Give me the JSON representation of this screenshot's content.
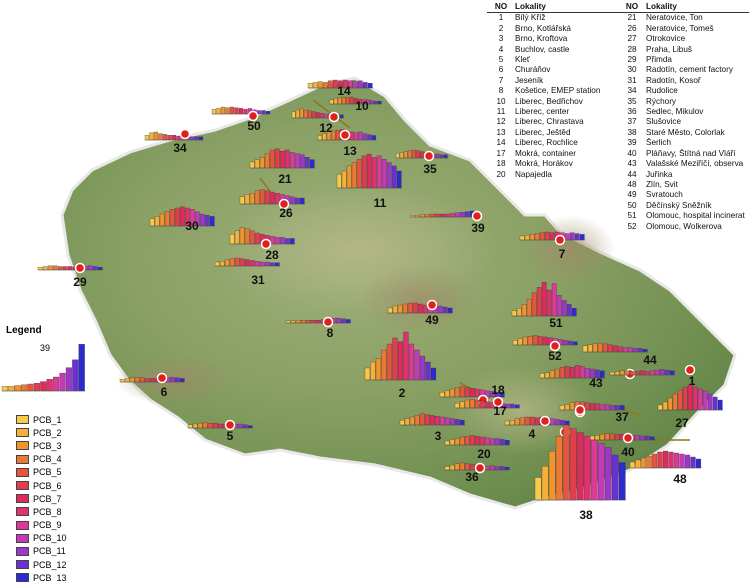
{
  "legend": {
    "title": "Legend",
    "sample_label": "39",
    "sample_values": [
      0.6,
      0.6,
      0.7,
      0.8,
      0.9,
      1.0,
      1.2,
      1.5,
      1.8,
      2.3,
      3.0,
      4.0,
      6.0
    ],
    "items": [
      {
        "label": "PCB_1",
        "color": "#f9c94a"
      },
      {
        "label": "PCB_2",
        "color": "#f5b03a"
      },
      {
        "label": "PCB_3",
        "color": "#f0952e"
      },
      {
        "label": "PCB_4",
        "color": "#ea7a33"
      },
      {
        "label": "PCB_5",
        "color": "#e6553f"
      },
      {
        "label": "PCB_6",
        "color": "#e23d4d"
      },
      {
        "label": "PCB_7",
        "color": "#de2b5c"
      },
      {
        "label": "PCB_8",
        "color": "#e0306e"
      },
      {
        "label": "PCB_9",
        "color": "#dc3a96"
      },
      {
        "label": "PCB_10",
        "color": "#c23ab8"
      },
      {
        "label": "PCB_11",
        "color": "#9c38c6"
      },
      {
        "label": "PCB_12",
        "color": "#6a32cc"
      },
      {
        "label": "PCB_13",
        "color": "#2c2ad0"
      }
    ]
  },
  "table": {
    "header_no": "NO",
    "header_name": "Lokality",
    "left": [
      {
        "no": "1",
        "name": "Bílý Kříž"
      },
      {
        "no": "2",
        "name": "Brno, Kotlářská"
      },
      {
        "no": "3",
        "name": "Brno, Kroftova"
      },
      {
        "no": "4",
        "name": "Buchlov, castle"
      },
      {
        "no": "5",
        "name": "Kleť"
      },
      {
        "no": "6",
        "name": "Churáňov"
      },
      {
        "no": "7",
        "name": "Jeseník"
      },
      {
        "no": "8",
        "name": "Košetice, EMEP station"
      },
      {
        "no": "10",
        "name": "Liberec, Bedřichov"
      },
      {
        "no": "11",
        "name": "Liberec, center"
      },
      {
        "no": "12",
        "name": "Liberec, Chrastava"
      },
      {
        "no": "13",
        "name": "Liberec, Ještěd"
      },
      {
        "no": "14",
        "name": "Liberec, Rochlice"
      },
      {
        "no": "17",
        "name": "Mokrá, container"
      },
      {
        "no": "18",
        "name": "Mokrá, Horákov"
      },
      {
        "no": "20",
        "name": "Napajedla"
      }
    ],
    "right": [
      {
        "no": "21",
        "name": "Neratovice, Ton"
      },
      {
        "no": "26",
        "name": "Neratovice, Tomeš"
      },
      {
        "no": "27",
        "name": "Otrokovice"
      },
      {
        "no": "28",
        "name": "Praha, Libuš"
      },
      {
        "no": "29",
        "name": "Přimda"
      },
      {
        "no": "30",
        "name": "Radotín, cement factory"
      },
      {
        "no": "31",
        "name": "Radotín, Kosoř"
      },
      {
        "no": "34",
        "name": "Rudolice"
      },
      {
        "no": "35",
        "name": "Rýchory"
      },
      {
        "no": "36",
        "name": "Sedlec, Mikulov"
      },
      {
        "no": "37",
        "name": "Slušovice"
      },
      {
        "no": "38",
        "name": "Staré Město, Colorlak"
      },
      {
        "no": "39",
        "name": "Šerlich"
      },
      {
        "no": "40",
        "name": "Pláňavy, Štítná nad Vláří"
      },
      {
        "no": "43",
        "name": "Valašské Meziříčí, observa"
      },
      {
        "no": "44",
        "name": "Juřinka"
      },
      {
        "no": "48",
        "name": "Zlín, Svit"
      },
      {
        "no": "49",
        "name": "Svratouch"
      },
      {
        "no": "50",
        "name": "Děčínský Sněžník"
      },
      {
        "no": "51",
        "name": "Olomouc, hospital incinerat"
      },
      {
        "no": "52",
        "name": "Olomouc,  Wolkerova"
      }
    ]
  },
  "sites": [
    {
      "label": "14",
      "values": [
        0.6,
        0.7,
        0.8,
        0.7,
        0.9,
        1.0,
        0.9,
        1.0,
        0.9,
        0.8,
        0.9,
        0.7,
        0.6
      ]
    },
    {
      "label": "10",
      "values": [
        0.6,
        0.8,
        0.9,
        1.0,
        0.9,
        1.0,
        0.8,
        0.7,
        0.6,
        0.6,
        0.5,
        0.4,
        0.4
      ]
    },
    {
      "label": "50",
      "values": [
        0.7,
        0.8,
        1.0,
        0.9,
        1.0,
        0.9,
        0.8,
        0.7,
        0.8,
        0.6,
        0.5,
        0.5,
        0.4
      ]
    },
    {
      "label": "12",
      "values": [
        0.8,
        1.0,
        1.2,
        1.0,
        0.9,
        0.8,
        0.7,
        0.6,
        0.5,
        0.5,
        0.4,
        0.4,
        0.4
      ]
    },
    {
      "label": "34",
      "values": [
        0.6,
        0.9,
        1.0,
        0.8,
        0.7,
        0.6,
        0.6,
        0.5,
        0.5,
        0.5,
        0.4,
        0.4,
        0.4
      ]
    },
    {
      "label": "13",
      "values": [
        0.5,
        0.7,
        0.9,
        1.0,
        1.1,
        1.2,
        1.0,
        0.9,
        0.8,
        0.9,
        0.7,
        0.6,
        0.5
      ]
    },
    {
      "label": "35",
      "values": [
        0.6,
        0.7,
        0.8,
        0.9,
        1.0,
        0.9,
        0.8,
        0.7,
        0.6,
        0.5,
        0.5,
        0.4,
        0.4
      ]
    },
    {
      "label": "21",
      "values": [
        0.5,
        0.7,
        0.9,
        1.2,
        1.5,
        1.6,
        1.4,
        1.5,
        1.3,
        1.2,
        1.1,
        0.9,
        0.7
      ]
    },
    {
      "label": "11",
      "values": [
        0.8,
        1.0,
        1.3,
        1.5,
        1.7,
        1.9,
        2.0,
        1.8,
        1.9,
        1.7,
        1.5,
        1.3,
        1.0
      ]
    },
    {
      "label": "26",
      "values": [
        0.6,
        0.8,
        0.9,
        1.1,
        1.2,
        1.1,
        1.0,
        0.9,
        0.8,
        0.7,
        0.6,
        0.5,
        0.5
      ]
    },
    {
      "label": "30",
      "values": [
        0.6,
        0.8,
        1.0,
        1.2,
        1.4,
        1.5,
        1.6,
        1.5,
        1.4,
        1.2,
        1.0,
        0.9,
        0.8
      ]
    },
    {
      "label": "39",
      "values": [
        0.3,
        0.3,
        0.4,
        0.4,
        0.5,
        0.5,
        0.5,
        0.5,
        0.6,
        0.7,
        0.8,
        0.9,
        1.0
      ]
    },
    {
      "label": "28",
      "values": [
        0.9,
        1.2,
        1.5,
        1.4,
        1.2,
        1.0,
        0.9,
        0.8,
        0.7,
        0.6,
        0.6,
        0.5,
        0.5
      ]
    },
    {
      "label": "7",
      "values": [
        0.5,
        0.6,
        0.7,
        0.8,
        0.9,
        1.0,
        0.9,
        1.0,
        0.9,
        0.8,
        0.9,
        0.8,
        0.7
      ]
    },
    {
      "label": "31",
      "values": [
        0.5,
        0.6,
        0.8,
        0.9,
        1.0,
        0.9,
        0.8,
        0.7,
        0.6,
        0.5,
        0.5,
        0.4,
        0.4
      ]
    },
    {
      "label": "29",
      "values": [
        0.4,
        0.5,
        0.6,
        0.6,
        0.5,
        0.5,
        0.5,
        0.4,
        0.4,
        0.5,
        0.6,
        0.5,
        0.4
      ]
    },
    {
      "label": "49",
      "values": [
        0.5,
        0.7,
        0.8,
        0.9,
        1.0,
        1.0,
        0.9,
        0.8,
        0.7,
        0.8,
        0.7,
        0.6,
        0.5
      ]
    },
    {
      "label": "51",
      "values": [
        0.4,
        0.6,
        0.9,
        1.3,
        1.8,
        2.2,
        2.6,
        2.0,
        2.5,
        1.6,
        1.2,
        0.9,
        0.6
      ]
    },
    {
      "label": "8",
      "values": [
        0.3,
        0.3,
        0.4,
        0.4,
        0.4,
        0.4,
        0.4,
        0.5,
        0.6,
        0.7,
        0.7,
        0.6,
        0.5
      ]
    },
    {
      "label": "2",
      "values": [
        1.0,
        1.5,
        1.8,
        2.5,
        3.0,
        3.5,
        3.2,
        4.0,
        3.0,
        2.5,
        2.0,
        1.5,
        1.0
      ]
    },
    {
      "label": "52",
      "values": [
        0.6,
        0.8,
        1.0,
        1.1,
        1.2,
        1.1,
        1.0,
        0.9,
        0.8,
        0.7,
        0.6,
        0.5,
        0.4
      ]
    },
    {
      "label": "44",
      "values": [
        0.7,
        0.8,
        0.9,
        1.0,
        0.9,
        0.8,
        0.7,
        0.6,
        0.5,
        0.5,
        0.4,
        0.4,
        0.3
      ]
    },
    {
      "label": "6",
      "values": [
        0.4,
        0.5,
        0.6,
        0.6,
        0.6,
        0.5,
        0.5,
        0.5,
        0.5,
        0.6,
        0.7,
        0.6,
        0.5
      ]
    },
    {
      "label": "43",
      "values": [
        0.5,
        0.6,
        0.8,
        1.0,
        1.2,
        1.3,
        1.2,
        1.4,
        1.3,
        1.1,
        1.0,
        0.9,
        0.8
      ]
    },
    {
      "label": "1",
      "values": [
        0.4,
        0.5,
        0.6,
        0.6,
        0.5,
        0.5,
        0.6,
        0.5,
        0.6,
        0.7,
        0.8,
        0.7,
        0.6
      ]
    },
    {
      "label": "18",
      "values": [
        0.6,
        0.8,
        1.0,
        1.2,
        1.3,
        1.2,
        1.1,
        1.0,
        0.9,
        0.8,
        0.7,
        0.6,
        0.6
      ]
    },
    {
      "label": "27",
      "values": [
        0.5,
        0.8,
        1.2,
        1.6,
        2.0,
        2.3,
        2.5,
        2.3,
        2.1,
        1.9,
        1.6,
        1.3,
        1.0
      ]
    },
    {
      "label": "17",
      "values": [
        0.6,
        0.8,
        1.0,
        1.1,
        1.0,
        0.9,
        0.8,
        0.7,
        0.6,
        0.6,
        0.5,
        0.5,
        0.4
      ]
    },
    {
      "label": "5",
      "values": [
        0.4,
        0.5,
        0.6,
        0.7,
        0.6,
        0.6,
        0.5,
        0.5,
        0.4,
        0.5,
        0.5,
        0.4,
        0.3
      ]
    },
    {
      "label": "37",
      "values": [
        0.5,
        0.6,
        0.8,
        0.9,
        0.9,
        0.8,
        0.7,
        0.7,
        0.6,
        0.6,
        0.5,
        0.5,
        0.5
      ]
    },
    {
      "label": "3",
      "values": [
        0.6,
        0.8,
        1.0,
        1.2,
        1.4,
        1.3,
        1.2,
        1.1,
        1.0,
        0.9,
        0.8,
        0.7,
        0.6
      ]
    },
    {
      "label": "4",
      "values": [
        0.5,
        0.6,
        0.8,
        0.9,
        1.0,
        1.0,
        0.9,
        1.0,
        0.9,
        0.8,
        0.7,
        0.6,
        0.5
      ]
    },
    {
      "label": "20",
      "values": [
        0.5,
        0.7,
        0.8,
        1.0,
        1.1,
        1.2,
        1.1,
        1.0,
        0.9,
        0.8,
        0.8,
        0.7,
        0.6
      ]
    },
    {
      "label": "40",
      "values": [
        0.5,
        0.6,
        0.7,
        0.8,
        0.8,
        0.7,
        0.7,
        0.6,
        0.6,
        0.6,
        0.5,
        0.5,
        0.4
      ]
    },
    {
      "label": "36",
      "values": [
        0.5,
        0.7,
        0.9,
        1.0,
        0.9,
        0.8,
        0.7,
        0.6,
        0.5,
        0.6,
        0.5,
        0.5,
        0.4
      ]
    },
    {
      "label": "48",
      "values": [
        0.6,
        0.8,
        1.0,
        1.2,
        1.4,
        1.6,
        1.7,
        1.6,
        1.5,
        1.4,
        1.3,
        1.1,
        0.9
      ]
    },
    {
      "label": "38",
      "values": [
        3.0,
        4.5,
        6.5,
        8.5,
        10.0,
        9.5,
        9.0,
        8.5,
        8.0,
        7.5,
        7.0,
        6.0,
        5.0
      ]
    }
  ]
}
